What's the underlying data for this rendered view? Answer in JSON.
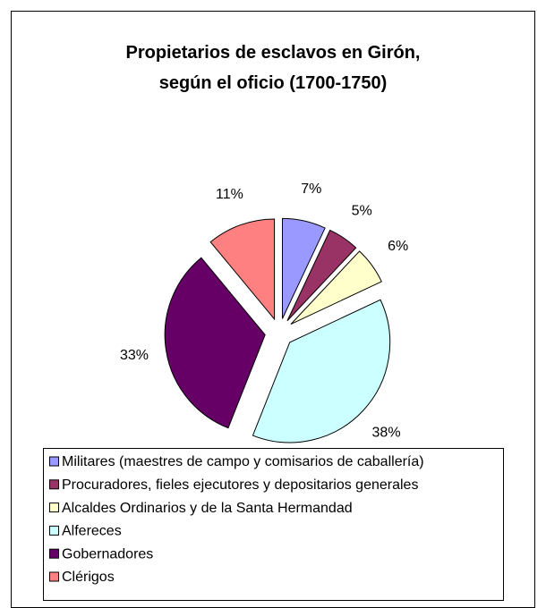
{
  "chart_data": {
    "type": "pie",
    "title": "Propietarios de esclavos en Girón, según el oficio (1700-1750)",
    "categories": [
      "Militares (maestres de campo y comisarios de caballería)",
      "Procuradores, fieles ejecutores y depositarios generales",
      "Alcaldes Ordinarios y de la Santa Hermandad",
      "Alfereces",
      "Gobernadores",
      "Clérigos"
    ],
    "values": [
      7,
      5,
      6,
      38,
      33,
      11
    ],
    "value_labels": [
      "7%",
      "5%",
      "6%",
      "38%",
      "33%",
      "11%"
    ],
    "colors": [
      "#9999ff",
      "#993366",
      "#ffffcc",
      "#ccffff",
      "#660066",
      "#ff8080"
    ]
  }
}
